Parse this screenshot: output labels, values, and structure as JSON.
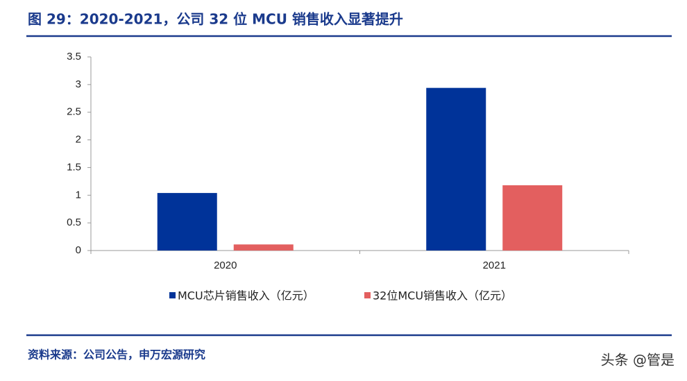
{
  "chart_data": {
    "type": "bar",
    "title": "图 29：2020-2021，公司 32 位 MCU 销售收入显著提升",
    "categories": [
      "2020",
      "2021"
    ],
    "series": [
      {
        "name": "MCU芯片销售收入（亿元）",
        "color": "#003399",
        "values": [
          1.04,
          2.94
        ]
      },
      {
        "name": "32位MCU销售收入（亿元）",
        "color": "#e35f5f",
        "values": [
          0.11,
          1.18
        ]
      }
    ],
    "ylim": [
      0,
      3.5
    ],
    "yticks": [
      0,
      0.5,
      1,
      1.5,
      2,
      2.5,
      3,
      3.5
    ],
    "legend": "bottom",
    "source": "资料来源：公司公告，申万宏源研究"
  },
  "watermark": "头条 @管是"
}
